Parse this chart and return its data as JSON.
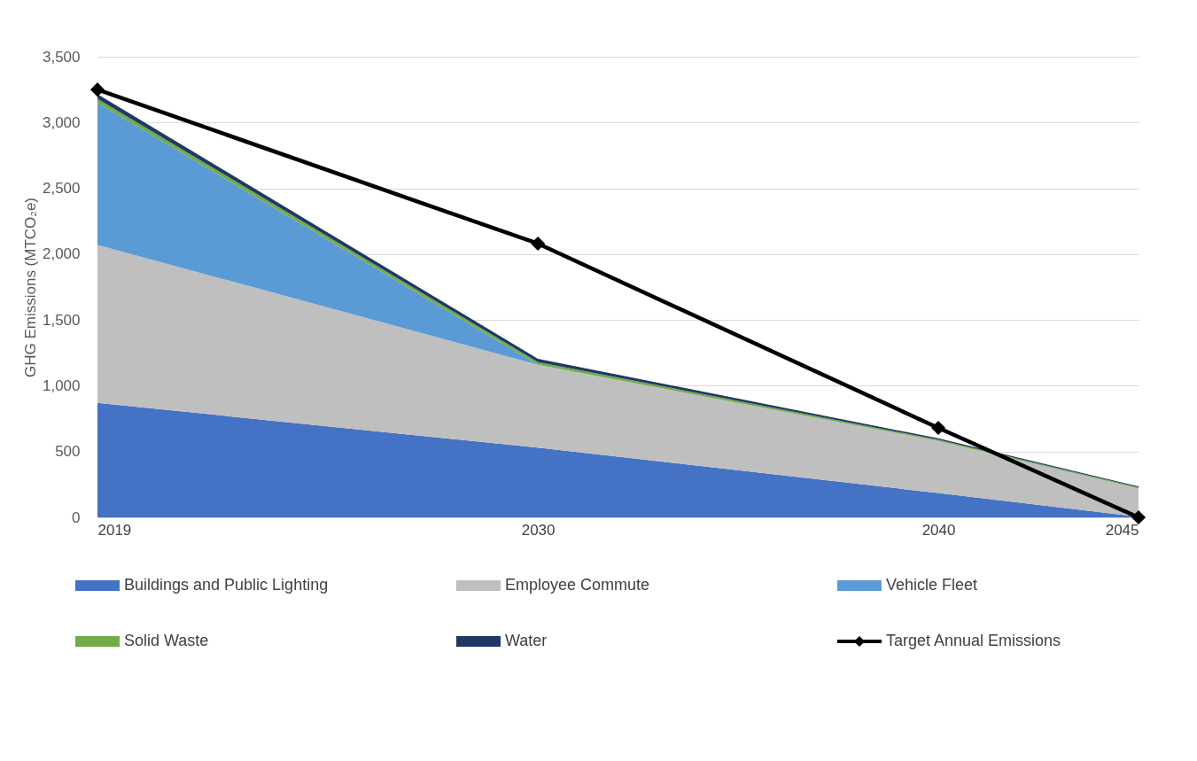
{
  "chart_data": {
    "type": "area",
    "stacked": true,
    "ylabel": "GHG Emissions (MTCO₂e)",
    "x": [
      2019,
      2030,
      2040,
      2045
    ],
    "xlim": [
      2019,
      2045
    ],
    "xticks": [
      2019,
      2030,
      2040,
      2045
    ],
    "ylim": [
      0,
      3500
    ],
    "yticks": [
      0,
      500,
      {
        "value": 1000,
        "label": "1,000"
      },
      {
        "value": 1500,
        "label": "1,500"
      },
      {
        "value": 2000,
        "label": "2,000"
      },
      {
        "value": 2500,
        "label": "2,500"
      },
      {
        "value": 3000,
        "label": "3,000"
      },
      {
        "value": 3500,
        "label": "3,500"
      }
    ],
    "grid": "y",
    "legend": "bottom",
    "series": [
      {
        "name": "Buildings and Public Lighting",
        "color": "#4472c4",
        "values": [
          870,
          530,
          185,
          5
        ]
      },
      {
        "name": "Employee Commute",
        "color": "#bfbfbf",
        "values": [
          1200,
          630,
          395,
          215
        ]
      },
      {
        "name": "Vehicle Fleet",
        "color": "#5b9bd5",
        "values": [
          1080,
          0,
          0,
          0
        ]
      },
      {
        "name": "Solid Waste",
        "color": "#70ad47",
        "values": [
          30,
          20,
          10,
          8
        ]
      },
      {
        "name": "Water",
        "color": "#203864",
        "values": [
          35,
          25,
          10,
          7
        ]
      },
      {
        "name": "Target Annual Emissions",
        "type": "line",
        "color": "#000000",
        "marker": "diamond",
        "values": [
          3250,
          2080,
          680,
          0
        ]
      }
    ]
  }
}
